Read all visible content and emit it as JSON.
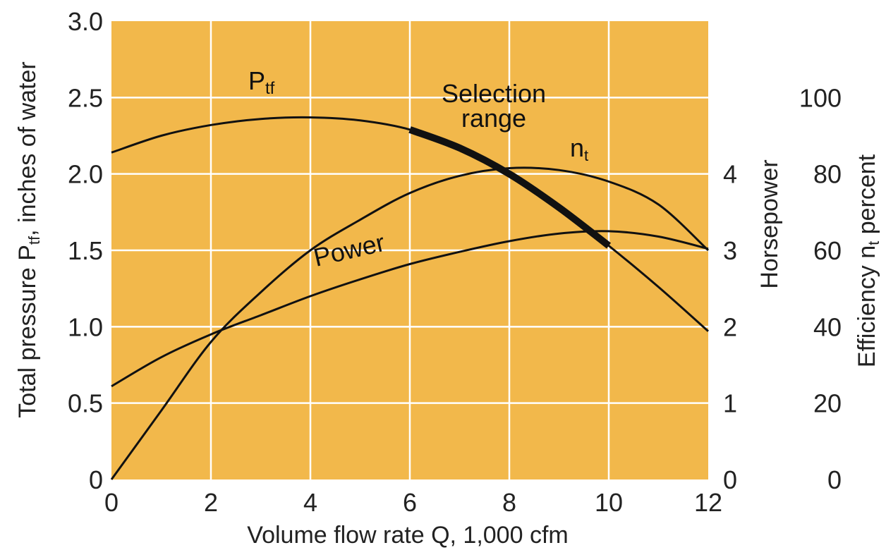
{
  "chart_data": {
    "type": "line",
    "xlabel": "Volume flow rate Q, 1,000 cfm",
    "ylabel": "Total pressure P",
    "ylabel_sub": "tf",
    "ylabel_suffix": ", inches of water",
    "y2label": "Horsepower",
    "y3label": "Efficiency n",
    "y3label_sub": "t",
    "y3label_suffix": " percent",
    "xlim": [
      0,
      12
    ],
    "ylim": [
      0,
      3.0
    ],
    "y2lim": [
      0,
      6
    ],
    "y3lim": [
      0,
      120
    ],
    "grid": true,
    "background_color": "#F2B84B",
    "line_color": "#111111",
    "x_ticks": [
      "0",
      "2",
      "4",
      "6",
      "8",
      "10",
      "12"
    ],
    "y_ticks": [
      "0",
      "0.5",
      "1.0",
      "1.5",
      "2.0",
      "2.5",
      "3.0"
    ],
    "y2_ticks": [
      "0",
      "1",
      "2",
      "3",
      "4"
    ],
    "y3_ticks": [
      "0",
      "20",
      "40",
      "60",
      "80",
      "100"
    ],
    "series": [
      {
        "name": "Ptf",
        "axis": "pressure",
        "x": [
          0,
          1,
          2,
          3,
          4,
          5,
          6,
          7,
          8,
          9,
          10,
          11,
          12
        ],
        "values": [
          2.14,
          2.25,
          2.32,
          2.36,
          2.37,
          2.35,
          2.29,
          2.17,
          2.0,
          1.78,
          1.53,
          1.26,
          0.97
        ]
      },
      {
        "name": "nt",
        "axis": "efficiency",
        "x": [
          0,
          1,
          2,
          3,
          4,
          5,
          6,
          7,
          8,
          9,
          10,
          11,
          12
        ],
        "values": [
          0,
          18,
          36,
          49,
          60,
          68,
          75,
          79.5,
          81.5,
          81,
          78,
          72,
          60
        ]
      },
      {
        "name": "Power",
        "axis": "horsepower",
        "x": [
          0,
          1,
          2,
          3,
          4,
          5,
          6,
          7,
          8,
          9,
          10,
          11,
          12
        ],
        "values": [
          1.22,
          1.6,
          1.9,
          2.15,
          2.4,
          2.62,
          2.82,
          2.98,
          3.12,
          3.22,
          3.25,
          3.18,
          3.02
        ]
      }
    ],
    "selection_range": {
      "x": [
        6,
        10
      ]
    },
    "annotations": {
      "ptf_label": "P",
      "ptf_label_sub": "tf",
      "nt_label": "n",
      "nt_label_sub": "t",
      "power_label": "Power",
      "selection_line1": "Selection",
      "selection_line2": "range"
    }
  }
}
